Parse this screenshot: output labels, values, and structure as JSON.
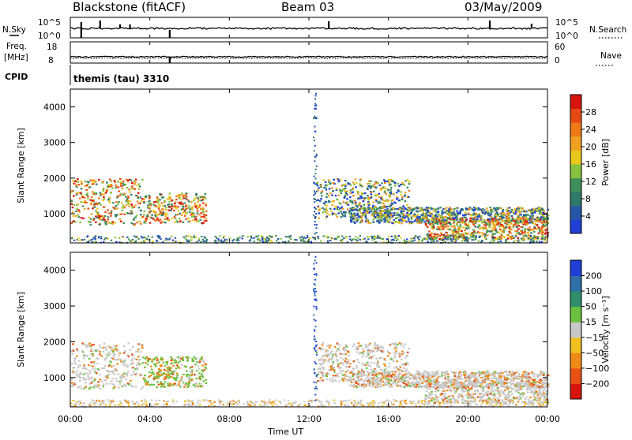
{
  "header": {
    "station": "Blackstone (fitACF)",
    "beam": "Beam 03",
    "date": "03/May/2009"
  },
  "params": {
    "nsky_label": "N.Sky",
    "nsky_ticks": [
      "10^5",
      "10^0"
    ],
    "nsearch_label": "N.Search",
    "nsearch_ticks": [
      "10^5",
      "10^0"
    ],
    "freq_label": "Freq.",
    "freq_unit": "[MHz]",
    "freq_ticks": [
      "18",
      "8"
    ],
    "nave_label": "Nave",
    "nave_ticks": [
      "60",
      "0"
    ],
    "cpid_label": "CPID",
    "cpid_value": "themis (tau) 3310"
  },
  "chart_data": [
    {
      "type": "heatmap",
      "name": "power",
      "ylabel": "Slant Range [km]",
      "xlabel": "Time UT",
      "x_ticks": [
        "00:00",
        "04:00",
        "08:00",
        "12:00",
        "16:00",
        "20:00",
        "00:00"
      ],
      "x_range_hours": [
        0,
        24
      ],
      "y_ticks": [
        "1000",
        "2000",
        "3000",
        "4000"
      ],
      "y_range_km": [
        180,
        4500
      ],
      "colorbar": {
        "label": "Power [dB]",
        "ticks": [
          "4",
          "8",
          "12",
          "16",
          "20",
          "24",
          "28"
        ],
        "range": [
          0,
          32
        ],
        "colors": [
          "#1f3fd6",
          "#2656a8",
          "#2f7a6a",
          "#3f8f5a",
          "#86c23d",
          "#e8c81a",
          "#f0a020",
          "#ee7a18",
          "#e84a14",
          "#d8140e"
        ]
      },
      "regions": [
        {
          "t": [
            0.0,
            3.6
          ],
          "r": [
            700,
            2000
          ],
          "level": "strong"
        },
        {
          "t": [
            3.6,
            6.8
          ],
          "r": [
            750,
            1600
          ],
          "level": "strong"
        },
        {
          "t": [
            12.3,
            17.0
          ],
          "r": [
            900,
            2000
          ],
          "level": "medium"
        },
        {
          "t": [
            14.0,
            24.0
          ],
          "r": [
            750,
            1200
          ],
          "level": "medium"
        },
        {
          "t": [
            17.8,
            24.0
          ],
          "r": [
            300,
            900
          ],
          "level": "strong"
        }
      ]
    },
    {
      "type": "heatmap",
      "name": "velocity",
      "ylabel": "Slant Range [km]",
      "xlabel": "Time UT",
      "x_ticks": [
        "00:00",
        "04:00",
        "08:00",
        "12:00",
        "16:00",
        "20:00",
        "00:00"
      ],
      "x_range_hours": [
        0,
        24
      ],
      "y_ticks": [
        "1000",
        "2000",
        "3000",
        "4000"
      ],
      "y_range_km": [
        180,
        4500
      ],
      "colorbar": {
        "label": "Velocity [m s⁻¹]",
        "ticks": [
          "200",
          "100",
          "50",
          "15",
          "−15",
          "−50",
          "−100",
          "−200"
        ],
        "colors": [
          "#1f3fd6",
          "#2e6fa8",
          "#2e8f6a",
          "#6cc040",
          "#c8c8c8",
          "#f0c020",
          "#f08a18",
          "#e85014",
          "#d8140e"
        ]
      }
    }
  ]
}
